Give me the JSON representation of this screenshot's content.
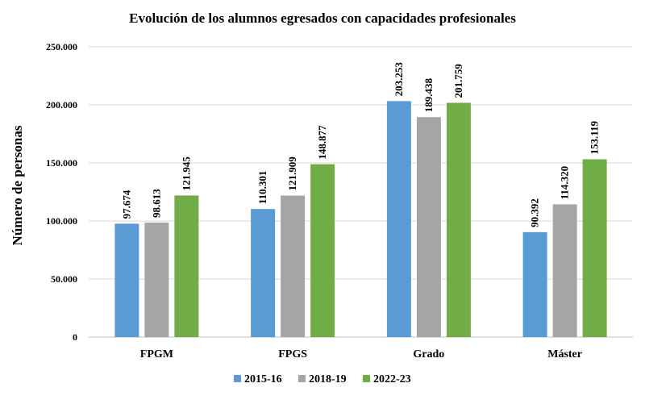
{
  "chart_data": {
    "type": "bar",
    "title": "Evolución de los alumnos egresados con capacidades profesionales",
    "ylabel": "Número de personas",
    "xlabel": "",
    "categories": [
      "FPGM",
      "FPGS",
      "Grado",
      "Máster"
    ],
    "ylim": [
      0,
      250000
    ],
    "yticks": [
      0,
      50000,
      100000,
      150000,
      200000,
      250000
    ],
    "ytick_labels": [
      "0",
      "50.000",
      "100.000",
      "150.000",
      "200.000",
      "250.000"
    ],
    "grid": true,
    "legend_position": "bottom",
    "series": [
      {
        "name": "2015-16",
        "color": "#5b9bd5",
        "values": [
          97674,
          110301,
          203253,
          90392
        ],
        "labels": [
          "97.674",
          "110.301",
          "203.253",
          "90.392"
        ]
      },
      {
        "name": "2018-19",
        "color": "#a5a5a5",
        "values": [
          98613,
          121909,
          189438,
          114320
        ],
        "labels": [
          "98.613",
          "121.909",
          "189.438",
          "114.320"
        ]
      },
      {
        "name": "2022-23",
        "color": "#70ad47",
        "values": [
          121945,
          148877,
          201759,
          153119
        ],
        "labels": [
          "121.945",
          "148.877",
          "201.759",
          "153.119"
        ]
      }
    ]
  }
}
